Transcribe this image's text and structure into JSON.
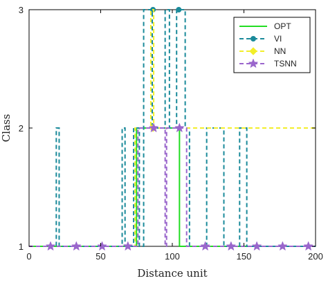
{
  "chart_data": {
    "type": "line",
    "title": "",
    "xlabel": "Distance unit",
    "ylabel": "Class",
    "xlim": [
      0,
      200
    ],
    "ylim": [
      1,
      3
    ],
    "xticks": [
      0,
      50,
      100,
      150,
      200
    ],
    "yticks": [
      1,
      2,
      3
    ],
    "grid": false,
    "legend": "top-right",
    "series": [
      {
        "name": "OPT",
        "color": "#22dd22",
        "style": "solid",
        "marker": "none",
        "x": [
          0,
          75,
          75,
          105,
          105,
          200
        ],
        "y": [
          1,
          1,
          2,
          2,
          1,
          1
        ],
        "marker_x": [],
        "marker_y": []
      },
      {
        "name": "VI",
        "color": "#1a8a9a",
        "style": "dashed",
        "marker": "circle",
        "x": [
          0,
          19,
          19,
          21,
          21,
          65,
          65,
          67,
          67,
          73,
          73,
          77,
          77,
          80,
          80,
          86,
          86,
          95,
          95,
          98,
          98,
          103,
          103,
          109,
          109,
          112,
          112,
          124,
          124,
          126,
          126,
          136,
          136,
          147,
          147,
          149,
          149,
          152,
          152,
          200
        ],
        "y": [
          1,
          1,
          2,
          2,
          1,
          1,
          2,
          2,
          1,
          1,
          2,
          2,
          1,
          1,
          3,
          3,
          2,
          2,
          3,
          3,
          2,
          2,
          3,
          3,
          2,
          2,
          1,
          1,
          2,
          2,
          2,
          2,
          1,
          1,
          2,
          2,
          2,
          2,
          1,
          1
        ],
        "marker_x": [
          86.5,
          104.5
        ],
        "marker_y": [
          3,
          3
        ]
      },
      {
        "name": "NN",
        "color": "#f2ee2a",
        "style": "dashed",
        "marker": "diamond",
        "x": [
          0,
          74,
          74,
          85,
          85,
          87,
          87,
          200
        ],
        "y": [
          1,
          1,
          2,
          2,
          3,
          3,
          2,
          2
        ],
        "marker_x": [
          86.5
        ],
        "marker_y": [
          2
        ]
      },
      {
        "name": "TSNN",
        "color": "#9a66cc",
        "style": "dashed",
        "marker": "star",
        "x": [
          0,
          76,
          76,
          95,
          95,
          96,
          96,
          110,
          110,
          200
        ],
        "y": [
          1,
          1,
          2,
          2,
          1,
          1,
          2,
          2,
          1,
          1
        ],
        "marker_x": [
          15,
          33,
          51,
          69,
          87,
          105,
          123,
          141,
          159,
          177,
          195
        ],
        "marker_y": [
          1,
          1,
          1,
          1,
          2,
          2,
          1,
          1,
          1,
          1,
          1
        ]
      }
    ]
  }
}
